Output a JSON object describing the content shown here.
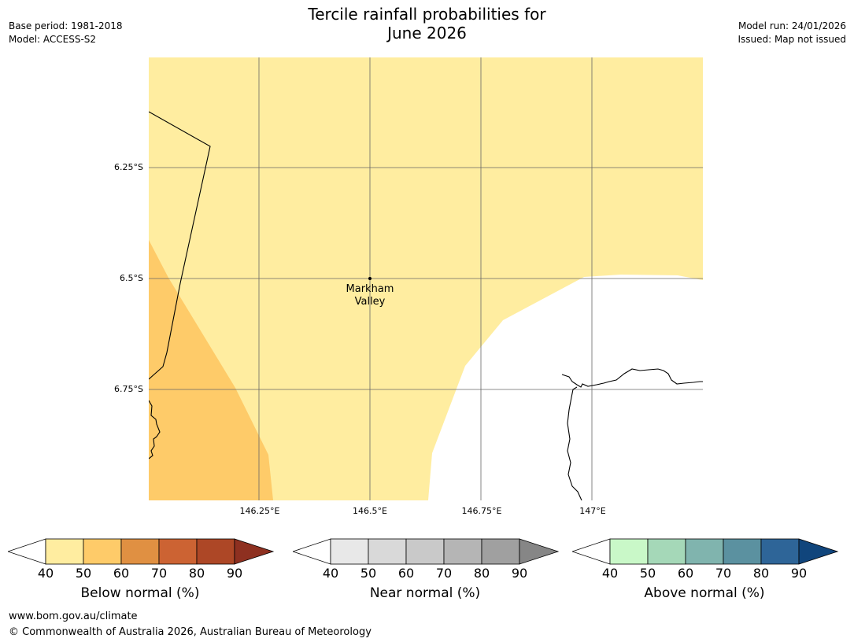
{
  "title_line1": "Tercile rainfall probabilities for",
  "title_line2": "June 2026",
  "meta_left": {
    "base_period": "Base period: 1981-2018",
    "model": "Model: ACCESS-S2"
  },
  "meta_right": {
    "model_run": "Model run: 24/01/2026",
    "issued": "Issued: Map not issued"
  },
  "map": {
    "lat_labels": [
      "6.25°S",
      "6.5°S",
      "6.75°S"
    ],
    "lon_labels": [
      "146.25°E",
      "146.5°E",
      "146.75°E",
      "147°E"
    ],
    "place": {
      "name_line1": "Markham",
      "name_line2": "Valley"
    },
    "colors": {
      "below_40_50": "#ffeda0",
      "below_50_60": "#fecb69",
      "coast": "#000000",
      "grid": "#666666"
    }
  },
  "colorbars": [
    {
      "title": "Below normal (%)",
      "ticks": [
        "40",
        "50",
        "60",
        "70",
        "80",
        "90"
      ],
      "colors": [
        "#ffeda0",
        "#fecb69",
        "#e09042",
        "#cc6333",
        "#ad4726",
        "#8e3020"
      ]
    },
    {
      "title": "Near normal (%)",
      "ticks": [
        "40",
        "50",
        "60",
        "70",
        "80",
        "90"
      ],
      "colors": [
        "#e8e8e8",
        "#d9d9d9",
        "#c9c9c9",
        "#b5b5b5",
        "#a0a0a0",
        "#868686"
      ]
    },
    {
      "title": "Above normal (%)",
      "ticks": [
        "40",
        "50",
        "60",
        "70",
        "80",
        "90"
      ],
      "colors": [
        "#c9f8c8",
        "#a5d8b8",
        "#80b4ae",
        "#5b91a0",
        "#2e6598",
        "#10457c"
      ]
    }
  ],
  "footer": {
    "url": "www.bom.gov.au/climate",
    "copyright": "© Commonwealth of Australia 2026, Australian Bureau of Meteorology"
  }
}
